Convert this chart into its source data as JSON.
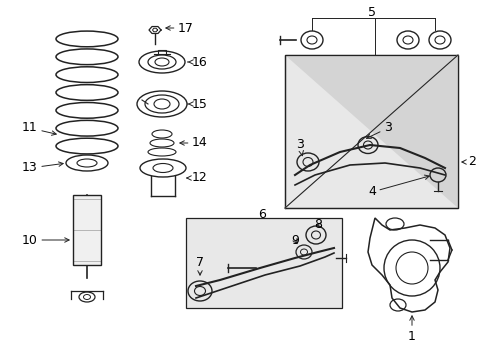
{
  "bg_color": "#ffffff",
  "line_color": "#222222",
  "label_color": "#000000",
  "figsize": [
    4.89,
    3.6
  ],
  "dpi": 100,
  "xlim": [
    0,
    489
  ],
  "ylim": [
    0,
    360
  ]
}
